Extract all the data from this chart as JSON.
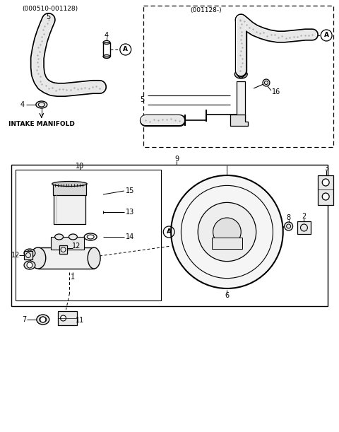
{
  "bg": "#ffffff",
  "lc": "#000000",
  "tc": "#000000",
  "figw": 4.8,
  "figh": 6.11,
  "dpi": 100,
  "header_left": "(000510-001128)",
  "header_right": "(001128-)",
  "intake_manifold": "INTAKE MANIFOLD"
}
